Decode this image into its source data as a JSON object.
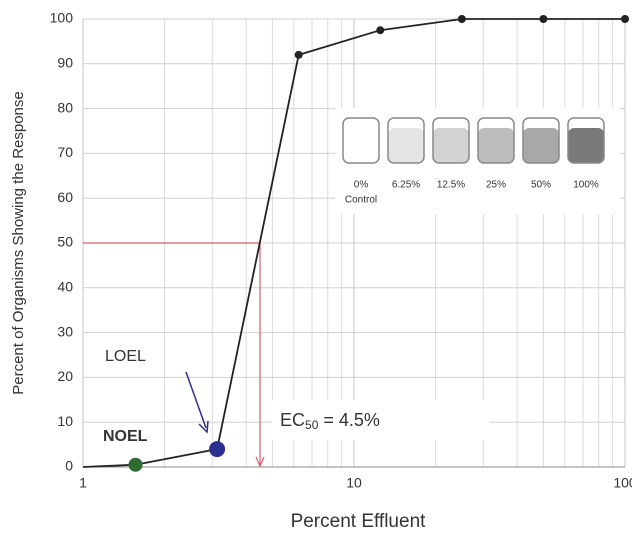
{
  "chart_data": {
    "type": "line",
    "x_label": "Percent Effluent",
    "y_label": "Percent of Organisms Showing the Response",
    "x": [
      1,
      1.5625,
      3.125,
      6.25,
      12.5,
      25,
      50,
      100
    ],
    "values": [
      0,
      0.5,
      4,
      92,
      97.5,
      100,
      100,
      100
    ],
    "color": "#222222",
    "xscale": "log",
    "xlim": [
      1,
      100
    ],
    "ylim": [
      0,
      100
    ],
    "xticks": [
      1,
      10,
      100
    ],
    "yticks": [
      0,
      10,
      20,
      30,
      40,
      50,
      60,
      70,
      80,
      90,
      100
    ],
    "grid": true,
    "noel": {
      "label": "NOEL",
      "color": "#2e6b30"
    },
    "loel": {
      "label": "LOEL",
      "color": "#2b2f8f"
    },
    "reference": {
      "x": 4.5,
      "y": 50,
      "color": "#d9606a"
    },
    "ec50_label": {
      "main": "EC",
      "sub": "50",
      "rest": " = 4.5%"
    },
    "inset": {
      "labels": [
        "0%",
        "6.25%",
        "12.5%",
        "25%",
        "50%",
        "100%"
      ],
      "control": "Control"
    }
  }
}
